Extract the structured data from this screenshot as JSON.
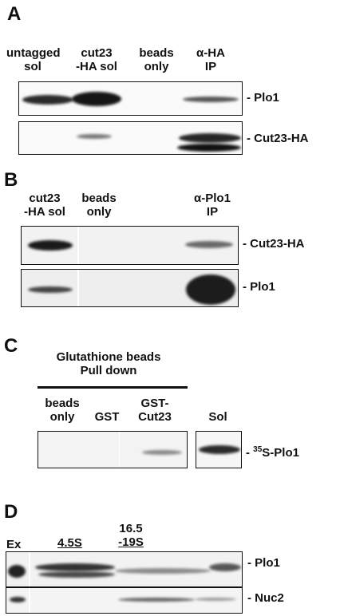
{
  "panelA": {
    "letter": "A",
    "columns": [
      {
        "line1": "untagged",
        "line2": "sol"
      },
      {
        "line1": "cut23",
        "line2": "-HA sol"
      },
      {
        "line1": "beads",
        "line2": "only"
      },
      {
        "line1": "α-HA",
        "line2": "IP"
      }
    ],
    "blots": [
      "- Plo1",
      "- Cut23-HA"
    ]
  },
  "panelB": {
    "letter": "B",
    "columns": [
      {
        "line1": "cut23",
        "line2": "-HA sol"
      },
      {
        "line1": "beads",
        "line2": "only"
      },
      {
        "line1": "α-Plo1",
        "line2": "IP"
      }
    ],
    "blots": [
      "- Cut23-HA",
      "- Plo1"
    ]
  },
  "panelC": {
    "letter": "C",
    "group_line1": "Glutathione beads",
    "group_line2": "Pull down",
    "columns": [
      {
        "line1": "beads",
        "line2": "only"
      },
      {
        "line1": "",
        "line2": "GST"
      },
      {
        "line1": "GST-",
        "line2": "Cut23"
      },
      {
        "line1": "",
        "line2": "Sol"
      }
    ],
    "blot_prefix": "- ",
    "blot_sup": "35",
    "blot_suffix": "S-Plo1"
  },
  "panelD": {
    "letter": "D",
    "ex_label": "Ex",
    "marker1": "4.5S",
    "marker2_line1": "16.5",
    "marker2_line2": "-19S",
    "blots": [
      "- Plo1",
      "- Nuc2"
    ]
  }
}
